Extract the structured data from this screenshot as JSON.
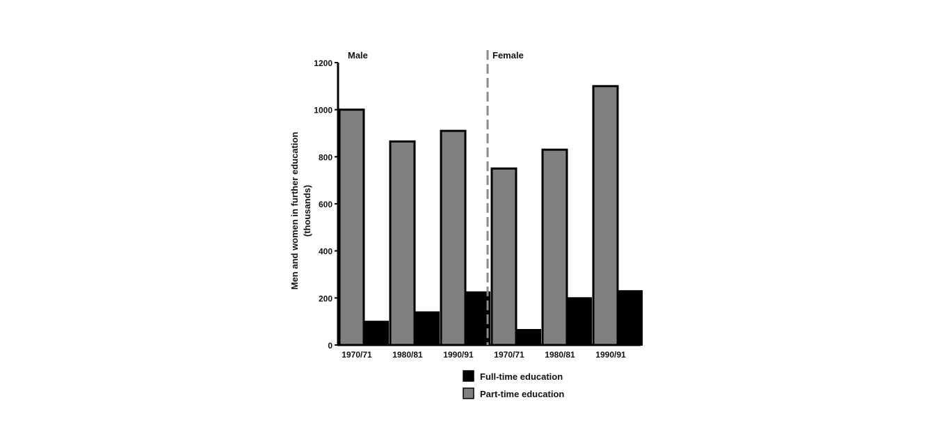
{
  "chart_data": {
    "type": "bar",
    "ylabel": "Men and women in further education",
    "ylabel_unit": "(thousands)",
    "ylim": [
      0,
      1200
    ],
    "yticks": [
      0,
      200,
      400,
      600,
      800,
      1000,
      1200
    ],
    "groups": [
      {
        "name": "Male",
        "categories": [
          "1970/71",
          "1980/81",
          "1990/91"
        ]
      },
      {
        "name": "Female",
        "categories": [
          "1970/71",
          "1980/81",
          "1990/91"
        ]
      }
    ],
    "series": [
      {
        "name": "Part-time education",
        "color": "#808080",
        "values": [
          1000,
          865,
          910,
          750,
          830,
          1100
        ]
      },
      {
        "name": "Full-time education",
        "color": "#000000",
        "values": [
          100,
          140,
          225,
          65,
          200,
          230
        ]
      }
    ],
    "legend": {
      "placement": "bottom",
      "entries": [
        {
          "label": "Full-time education",
          "color": "#000000"
        },
        {
          "label": "Part-time education",
          "color": "#808080"
        }
      ]
    },
    "grid": false
  }
}
